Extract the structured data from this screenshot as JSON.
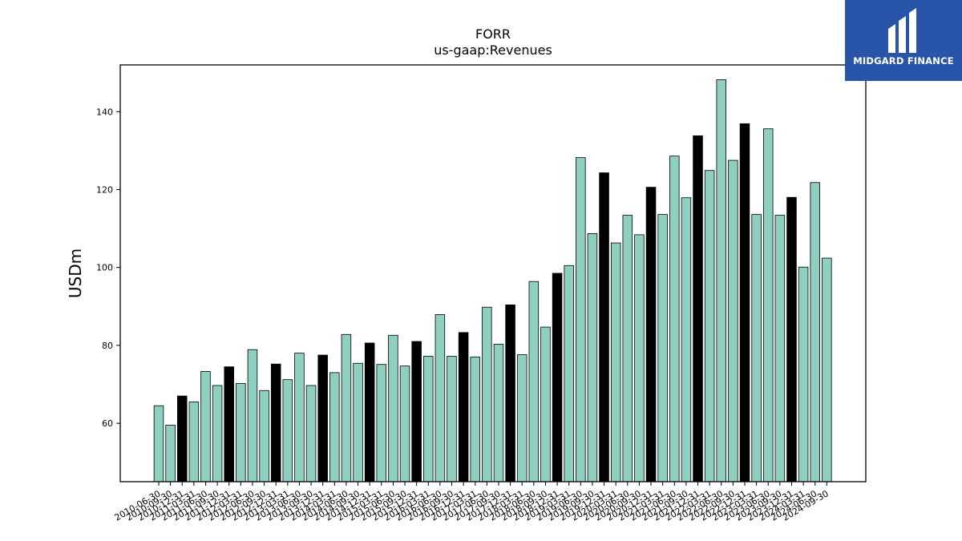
{
  "brand": {
    "name": "MIDGARD FINANCE",
    "icon": "midgard-logo-icon",
    "bg_color": "#2855a8"
  },
  "chart_data": {
    "type": "bar",
    "title": "FORR",
    "subtitle": "us-gaap:Revenues",
    "xlabel": "",
    "ylabel": "USDm",
    "ylim": [
      45,
      152
    ],
    "yticks": [
      60,
      80,
      100,
      120,
      140
    ],
    "grid": false,
    "legend": "none",
    "colors": {
      "quarter": "#8ecfc0",
      "fiscal_year": "#000000",
      "edge": "#000000"
    },
    "categories": [
      "2010-06-30",
      "2010-09-30",
      "2010-12-31",
      "2011-03-31",
      "2011-06-30",
      "2011-09-30",
      "2011-12-31",
      "2012-03-31",
      "2012-06-30",
      "2012-09-30",
      "2012-12-31",
      "2013-03-31",
      "2013-06-30",
      "2013-09-30",
      "2013-12-31",
      "2014-03-31",
      "2014-06-30",
      "2014-09-30",
      "2014-12-31",
      "2015-03-31",
      "2015-06-30",
      "2015-09-30",
      "2015-12-31",
      "2016-03-31",
      "2016-06-30",
      "2016-09-30",
      "2016-12-31",
      "2017-03-31",
      "2017-06-30",
      "2017-09-30",
      "2017-12-31",
      "2018-03-31",
      "2018-06-30",
      "2018-09-30",
      "2018-12-31",
      "2019-03-31",
      "2019-06-30",
      "2019-09-30",
      "2019-12-31",
      "2020-03-31",
      "2020-06-30",
      "2020-09-30",
      "2020-12-31",
      "2021-03-31",
      "2021-06-30",
      "2021-09-30",
      "2021-12-31",
      "2022-03-31",
      "2022-06-30",
      "2022-09-30",
      "2022-12-31",
      "2023-03-31",
      "2023-06-30",
      "2023-09-30",
      "2023-12-31",
      "2024-03-31",
      "2024-06-30",
      "2024-09-30"
    ],
    "values": [
      64.5,
      59.5,
      67.0,
      65.5,
      73.3,
      69.7,
      74.5,
      70.2,
      78.9,
      68.4,
      75.2,
      71.2,
      78.0,
      69.7,
      77.5,
      73.0,
      82.8,
      75.4,
      80.6,
      75.1,
      82.6,
      74.7,
      81.0,
      77.2,
      87.9,
      77.2,
      83.3,
      77.0,
      89.8,
      80.3,
      90.4,
      77.6,
      96.4,
      84.7,
      98.5,
      100.5,
      128.2,
      108.7,
      124.3,
      106.3,
      113.4,
      108.4,
      120.6,
      113.6,
      128.6,
      117.9,
      133.8,
      124.9,
      148.2,
      127.5,
      136.9,
      113.6,
      135.6,
      113.4,
      118.0,
      100.1,
      121.8,
      102.4
    ],
    "fiscal_year_flags": [
      0,
      0,
      1,
      0,
      0,
      0,
      1,
      0,
      0,
      0,
      1,
      0,
      0,
      0,
      1,
      0,
      0,
      0,
      1,
      0,
      0,
      0,
      1,
      0,
      0,
      0,
      1,
      0,
      0,
      0,
      1,
      0,
      0,
      0,
      1,
      0,
      0,
      0,
      1,
      0,
      0,
      0,
      1,
      0,
      0,
      0,
      1,
      0,
      0,
      0,
      1,
      0,
      0,
      0,
      1,
      0,
      0,
      0
    ]
  }
}
